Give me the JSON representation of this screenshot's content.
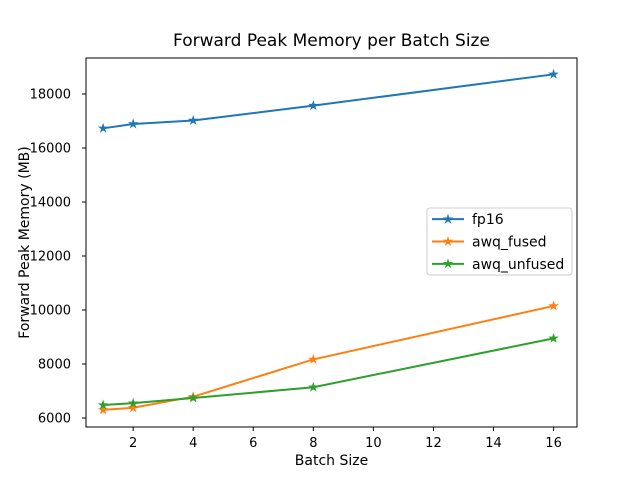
{
  "figure": {
    "background": "#ffffff",
    "spine_color": "#000000",
    "text_color": "#000000",
    "legend_border_color": "#cccccc"
  },
  "chart_data": {
    "type": "line",
    "title": "Forward Peak Memory per Batch Size",
    "xlabel": "Batch Size",
    "ylabel": "Forward Peak Memory (MB)",
    "x": [
      1,
      2,
      4,
      8,
      16
    ],
    "series": [
      {
        "name": "fp16",
        "color": "#1f77b4",
        "marker": "star",
        "values": [
          16730,
          16890,
          17020,
          17570,
          18730
        ]
      },
      {
        "name": "awq_fused",
        "color": "#ff7f0e",
        "marker": "star",
        "values": [
          6300,
          6380,
          6790,
          8170,
          10150
        ]
      },
      {
        "name": "awq_unfused",
        "color": "#2ca02c",
        "marker": "star",
        "values": [
          6480,
          6550,
          6740,
          7140,
          8950
        ]
      }
    ],
    "xticks": [
      2,
      4,
      6,
      8,
      10,
      12,
      14,
      16
    ],
    "yticks": [
      6000,
      8000,
      10000,
      12000,
      14000,
      16000,
      18000
    ],
    "xlim": [
      0.43,
      16.78
    ],
    "ylim": [
      5667,
      19334
    ],
    "grid": false,
    "legend": {
      "position": "center-right",
      "entries": [
        "fp16",
        "awq_fused",
        "awq_unfused"
      ]
    }
  }
}
